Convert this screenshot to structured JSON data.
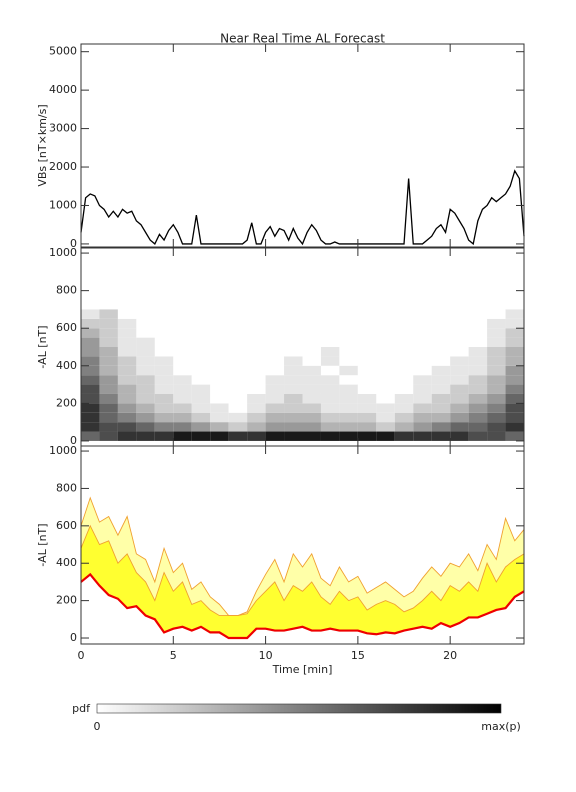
{
  "chart_data": [
    {
      "type": "line",
      "title": "Near Real Time AL Forecast",
      "ylabel": "VBs [nT×km/s]",
      "color": "#000000",
      "xlim": [
        0,
        24
      ],
      "xticks": [
        0,
        5,
        10,
        15,
        20
      ],
      "ylim": [
        -80,
        5200
      ],
      "yticks": [
        0,
        1000,
        2000,
        3000,
        4000,
        5000
      ],
      "x": [
        0,
        0.25,
        0.5,
        0.75,
        1,
        1.25,
        1.5,
        1.75,
        2,
        2.25,
        2.5,
        2.75,
        3,
        3.25,
        3.5,
        3.75,
        4,
        4.25,
        4.5,
        4.75,
        5,
        5.25,
        5.5,
        5.75,
        6,
        6.25,
        6.5,
        6.75,
        7,
        7.25,
        7.5,
        7.75,
        8,
        8.25,
        8.5,
        8.75,
        9,
        9.25,
        9.5,
        9.75,
        10,
        10.25,
        10.5,
        10.75,
        11,
        11.25,
        11.5,
        11.75,
        12,
        12.25,
        12.5,
        12.75,
        13,
        13.25,
        13.5,
        13.75,
        14,
        14.25,
        14.5,
        14.75,
        15,
        15.25,
        15.5,
        15.75,
        16,
        16.25,
        16.5,
        16.75,
        17,
        17.25,
        17.5,
        17.75,
        18,
        18.25,
        18.5,
        18.75,
        19,
        19.25,
        19.5,
        19.75,
        20,
        20.25,
        20.5,
        20.75,
        21,
        21.25,
        21.5,
        21.75,
        22,
        22.25,
        22.5,
        22.75,
        23,
        23.25,
        23.5,
        23.75,
        24
      ],
      "values": [
        300,
        1200,
        1300,
        1250,
        1000,
        900,
        700,
        850,
        700,
        900,
        800,
        850,
        600,
        500,
        300,
        100,
        0,
        250,
        100,
        350,
        500,
        300,
        0,
        0,
        0,
        750,
        0,
        0,
        0,
        0,
        0,
        0,
        0,
        0,
        0,
        0,
        100,
        550,
        0,
        0,
        300,
        450,
        200,
        400,
        350,
        100,
        400,
        150,
        0,
        300,
        500,
        350,
        100,
        0,
        0,
        50,
        0,
        0,
        0,
        0,
        0,
        0,
        0,
        0,
        0,
        0,
        0,
        0,
        0,
        0,
        0,
        1700,
        0,
        0,
        0,
        100,
        200,
        400,
        500,
        300,
        900,
        800,
        600,
        400,
        100,
        0,
        600,
        900,
        1000,
        1200,
        1100,
        1200,
        1300,
        1500,
        1900,
        1700,
        200
      ]
    },
    {
      "type": "heatmap",
      "ylabel": "-AL [nT]",
      "xlim": [
        0,
        24
      ],
      "xticks": [
        0,
        5,
        10,
        15,
        20
      ],
      "ylim": [
        -27,
        1027
      ],
      "yticks": [
        0,
        200,
        400,
        600,
        800,
        1000
      ],
      "x_edges": [
        0,
        1,
        2,
        3,
        4,
        5,
        6,
        7,
        8,
        9,
        10,
        11,
        12,
        13,
        14,
        15,
        16,
        17,
        18,
        19,
        20,
        21,
        22,
        23,
        24
      ],
      "y_edges": [
        0,
        50,
        100,
        150,
        200,
        250,
        300,
        350,
        400,
        450,
        500,
        550,
        600,
        650,
        700
      ],
      "z": [
        [
          0.6,
          0.7,
          0.8,
          0.8,
          0.8,
          0.9,
          0.9,
          0.9,
          0.8,
          0.8,
          0.9,
          0.9,
          0.9,
          0.9,
          0.9,
          0.9,
          0.9,
          0.8,
          0.8,
          0.8,
          0.8,
          0.7,
          0.7,
          0.6
        ],
        [
          0.8,
          0.7,
          0.7,
          0.6,
          0.5,
          0.5,
          0.4,
          0.3,
          0.2,
          0.3,
          0.4,
          0.4,
          0.4,
          0.3,
          0.3,
          0.3,
          0.2,
          0.3,
          0.4,
          0.5,
          0.6,
          0.6,
          0.7,
          0.8
        ],
        [
          0.8,
          0.6,
          0.5,
          0.4,
          0.3,
          0.3,
          0.2,
          0.1,
          0.1,
          0.2,
          0.3,
          0.3,
          0.3,
          0.2,
          0.2,
          0.2,
          0.1,
          0.2,
          0.3,
          0.3,
          0.4,
          0.5,
          0.6,
          0.7
        ],
        [
          0.8,
          0.6,
          0.4,
          0.3,
          0.2,
          0.2,
          0.1,
          0.1,
          0,
          0.1,
          0.2,
          0.2,
          0.2,
          0.1,
          0.1,
          0.1,
          0.1,
          0.1,
          0.2,
          0.2,
          0.3,
          0.4,
          0.5,
          0.7
        ],
        [
          0.7,
          0.5,
          0.3,
          0.2,
          0.2,
          0.1,
          0.1,
          0,
          0,
          0.1,
          0.1,
          0.2,
          0.1,
          0.1,
          0.1,
          0.1,
          0,
          0.1,
          0.1,
          0.2,
          0.2,
          0.3,
          0.4,
          0.6
        ],
        [
          0.7,
          0.4,
          0.3,
          0.2,
          0.1,
          0.1,
          0.1,
          0,
          0,
          0,
          0.1,
          0.1,
          0.1,
          0.1,
          0.1,
          0,
          0,
          0,
          0.1,
          0.1,
          0.2,
          0.2,
          0.3,
          0.5
        ],
        [
          0.6,
          0.4,
          0.2,
          0.2,
          0.1,
          0.1,
          0,
          0,
          0,
          0,
          0.1,
          0.1,
          0.1,
          0.1,
          0,
          0,
          0,
          0,
          0.1,
          0.1,
          0.1,
          0.2,
          0.3,
          0.4
        ],
        [
          0.5,
          0.3,
          0.2,
          0.1,
          0.1,
          0,
          0,
          0,
          0,
          0,
          0,
          0.1,
          0.1,
          0,
          0.1,
          0,
          0,
          0,
          0,
          0.1,
          0.1,
          0.1,
          0.2,
          0.4
        ],
        [
          0.5,
          0.3,
          0.2,
          0.1,
          0.1,
          0,
          0,
          0,
          0,
          0,
          0,
          0.1,
          0,
          0.1,
          0,
          0,
          0,
          0,
          0,
          0,
          0.1,
          0.1,
          0.2,
          0.3
        ],
        [
          0.4,
          0.3,
          0.1,
          0.1,
          0,
          0,
          0,
          0,
          0,
          0,
          0,
          0,
          0,
          0.1,
          0,
          0,
          0,
          0,
          0,
          0,
          0,
          0.1,
          0.2,
          0.3
        ],
        [
          0.4,
          0.2,
          0.1,
          0.1,
          0,
          0,
          0,
          0,
          0,
          0,
          0,
          0,
          0,
          0,
          0,
          0,
          0,
          0,
          0,
          0,
          0,
          0,
          0.1,
          0.2
        ],
        [
          0.3,
          0.2,
          0.1,
          0,
          0,
          0,
          0,
          0,
          0,
          0,
          0,
          0,
          0,
          0,
          0,
          0,
          0,
          0,
          0,
          0,
          0,
          0,
          0.1,
          0.2
        ],
        [
          0.2,
          0.2,
          0.1,
          0,
          0,
          0,
          0,
          0,
          0,
          0,
          0,
          0,
          0,
          0,
          0,
          0,
          0,
          0,
          0,
          0,
          0,
          0,
          0.1,
          0.1
        ],
        [
          0.1,
          0.2,
          0,
          0,
          0,
          0,
          0,
          0,
          0,
          0,
          0,
          0,
          0,
          0,
          0,
          0,
          0,
          0,
          0,
          0,
          0,
          0,
          0,
          0.1
        ]
      ],
      "colorbar": {
        "label": "pdf",
        "min_label": "0",
        "max_label": "max(p)"
      }
    },
    {
      "type": "band",
      "ylabel": "-AL [nT]",
      "xlabel": "Time [min]",
      "xlim": [
        0,
        24
      ],
      "xticks": [
        0,
        5,
        10,
        15,
        20
      ],
      "ylim": [
        -32,
        1027
      ],
      "yticks": [
        0,
        200,
        400,
        600,
        800,
        1000
      ],
      "x": [
        0,
        0.5,
        1,
        1.5,
        2,
        2.5,
        3,
        3.5,
        4,
        4.5,
        5,
        5.5,
        6,
        6.5,
        7,
        7.5,
        8,
        8.5,
        9,
        9.5,
        10,
        10.5,
        11,
        11.5,
        12,
        12.5,
        13,
        13.5,
        14,
        14.5,
        15,
        15.5,
        16,
        16.5,
        17,
        17.5,
        18,
        18.5,
        19,
        19.5,
        20,
        20.5,
        21,
        21.5,
        22,
        22.5,
        23,
        23.5,
        24
      ],
      "series": [
        {
          "color": "#ee0000",
          "values": [
            300,
            340,
            280,
            230,
            210,
            160,
            170,
            120,
            100,
            30,
            50,
            60,
            40,
            60,
            30,
            30,
            0,
            0,
            0,
            50,
            50,
            40,
            40,
            50,
            60,
            40,
            40,
            50,
            40,
            40,
            40,
            25,
            20,
            30,
            25,
            40,
            50,
            60,
            50,
            80,
            60,
            80,
            110,
            110,
            130,
            150,
            160,
            220,
            250
          ]
        },
        {
          "color": "#f0a030",
          "fill": "#ffff30",
          "values": [
            480,
            600,
            500,
            520,
            400,
            450,
            350,
            300,
            200,
            350,
            250,
            300,
            180,
            200,
            150,
            120,
            120,
            120,
            130,
            200,
            250,
            300,
            200,
            280,
            250,
            300,
            220,
            180,
            250,
            200,
            220,
            150,
            180,
            200,
            180,
            140,
            160,
            200,
            250,
            200,
            280,
            250,
            300,
            250,
            400,
            300,
            380,
            420,
            450
          ]
        },
        {
          "color": "#f0a030",
          "fill": "#ffffa8",
          "values": [
            600,
            750,
            620,
            650,
            550,
            650,
            450,
            420,
            300,
            480,
            350,
            400,
            260,
            300,
            220,
            180,
            120,
            120,
            140,
            250,
            340,
            420,
            300,
            450,
            380,
            450,
            320,
            280,
            380,
            300,
            330,
            240,
            270,
            300,
            260,
            220,
            250,
            320,
            380,
            330,
            400,
            380,
            450,
            360,
            500,
            420,
            640,
            520,
            580
          ]
        }
      ]
    }
  ]
}
